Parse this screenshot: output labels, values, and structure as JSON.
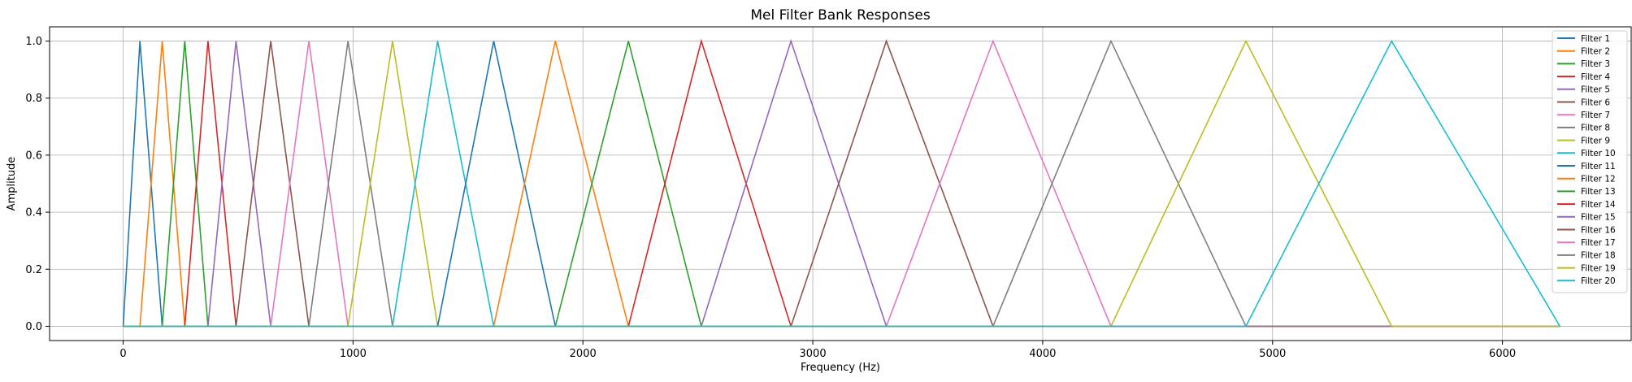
{
  "chart_data": {
    "type": "line",
    "title": "Mel Filter Bank Responses",
    "xlabel": "Frequency (Hz)",
    "ylabel": "Amplitude",
    "xlim": [
      -320,
      6560
    ],
    "ylim": [
      -0.05,
      1.05
    ],
    "xticks": [
      0,
      1000,
      2000,
      3000,
      4000,
      5000,
      6000
    ],
    "yticks": [
      0.0,
      0.2,
      0.4,
      0.6,
      0.8,
      1.0
    ],
    "xtick_labels": [
      "0",
      "1000",
      "2000",
      "3000",
      "4000",
      "5000",
      "6000"
    ],
    "ytick_labels": [
      "0.0",
      "0.2",
      "0.4",
      "0.6",
      "0.8",
      "1.0"
    ],
    "grid": true,
    "legend_position": "top-right",
    "x_min": 0,
    "x_max": 6250,
    "mel_points_hz": [
      0,
      73,
      170,
      268,
      369,
      491,
      642,
      808,
      978,
      1172,
      1368,
      1612,
      1880,
      2198,
      2515,
      2905,
      3320,
      3784,
      4297,
      4884,
      5518,
      6250
    ],
    "series": [
      {
        "name": "Filter 1",
        "color": "#1f77b4",
        "points": [
          [
            0,
            0
          ],
          [
            73,
            1
          ],
          [
            170,
            0
          ]
        ]
      },
      {
        "name": "Filter 2",
        "color": "#ff7f0e",
        "points": [
          [
            73,
            0
          ],
          [
            170,
            1
          ],
          [
            268,
            0
          ]
        ]
      },
      {
        "name": "Filter 3",
        "color": "#2ca02c",
        "points": [
          [
            170,
            0
          ],
          [
            268,
            1
          ],
          [
            369,
            0
          ]
        ]
      },
      {
        "name": "Filter 4",
        "color": "#d62728",
        "points": [
          [
            268,
            0
          ],
          [
            369,
            1
          ],
          [
            491,
            0
          ]
        ]
      },
      {
        "name": "Filter 5",
        "color": "#9467bd",
        "points": [
          [
            369,
            0
          ],
          [
            491,
            1
          ],
          [
            642,
            0
          ]
        ]
      },
      {
        "name": "Filter 6",
        "color": "#8c564b",
        "points": [
          [
            491,
            0
          ],
          [
            642,
            1
          ],
          [
            808,
            0
          ]
        ]
      },
      {
        "name": "Filter 7",
        "color": "#e377c2",
        "points": [
          [
            642,
            0
          ],
          [
            808,
            1
          ],
          [
            978,
            0
          ]
        ]
      },
      {
        "name": "Filter 8",
        "color": "#7f7f7f",
        "points": [
          [
            808,
            0
          ],
          [
            978,
            1
          ],
          [
            1172,
            0
          ]
        ]
      },
      {
        "name": "Filter 9",
        "color": "#bcbd22",
        "points": [
          [
            978,
            0
          ],
          [
            1172,
            1
          ],
          [
            1368,
            0
          ]
        ]
      },
      {
        "name": "Filter 10",
        "color": "#17becf",
        "points": [
          [
            1172,
            0
          ],
          [
            1368,
            1
          ],
          [
            1612,
            0
          ]
        ]
      },
      {
        "name": "Filter 11",
        "color": "#1f77b4",
        "points": [
          [
            1368,
            0
          ],
          [
            1612,
            1
          ],
          [
            1880,
            0
          ]
        ]
      },
      {
        "name": "Filter 12",
        "color": "#ff7f0e",
        "points": [
          [
            1612,
            0
          ],
          [
            1880,
            1
          ],
          [
            2198,
            0
          ]
        ]
      },
      {
        "name": "Filter 13",
        "color": "#2ca02c",
        "points": [
          [
            1880,
            0
          ],
          [
            2198,
            1
          ],
          [
            2515,
            0
          ]
        ]
      },
      {
        "name": "Filter 14",
        "color": "#d62728",
        "points": [
          [
            2198,
            0
          ],
          [
            2515,
            1
          ],
          [
            2905,
            0
          ]
        ]
      },
      {
        "name": "Filter 15",
        "color": "#9467bd",
        "points": [
          [
            2515,
            0
          ],
          [
            2905,
            1
          ],
          [
            3320,
            0
          ]
        ]
      },
      {
        "name": "Filter 16",
        "color": "#8c564b",
        "points": [
          [
            2905,
            0
          ],
          [
            3320,
            1
          ],
          [
            3784,
            0
          ]
        ]
      },
      {
        "name": "Filter 17",
        "color": "#e377c2",
        "points": [
          [
            3320,
            0
          ],
          [
            3784,
            1
          ],
          [
            4297,
            0
          ]
        ]
      },
      {
        "name": "Filter 18",
        "color": "#7f7f7f",
        "points": [
          [
            3784,
            0
          ],
          [
            4297,
            1
          ],
          [
            4884,
            0
          ]
        ]
      },
      {
        "name": "Filter 19",
        "color": "#bcbd22",
        "points": [
          [
            4297,
            0
          ],
          [
            4884,
            1
          ],
          [
            5518,
            0
          ]
        ]
      },
      {
        "name": "Filter 20",
        "color": "#17becf",
        "points": [
          [
            4884,
            0
          ],
          [
            5518,
            1
          ],
          [
            6250,
            0
          ]
        ]
      }
    ]
  }
}
